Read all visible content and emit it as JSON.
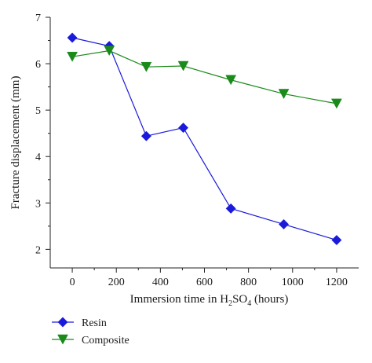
{
  "chart_data": {
    "type": "line",
    "x": [
      0,
      168,
      336,
      504,
      720,
      960,
      1200
    ],
    "series": [
      {
        "name": "Resin",
        "values": [
          6.56,
          6.38,
          4.44,
          4.62,
          2.88,
          2.54,
          2.2
        ],
        "color": "#1a1adb",
        "marker": "diamond"
      },
      {
        "name": "Composite",
        "values": [
          6.15,
          6.28,
          5.93,
          5.95,
          5.65,
          5.35,
          5.14
        ],
        "color": "#1a8a1a",
        "marker": "triangle-down"
      }
    ],
    "xlabel": {
      "prefix": "Immersion time in H",
      "sub1": "2",
      "mid": "SO",
      "sub2": "4",
      "suffix": " (hours)"
    },
    "ylabel": "Fracture displacement (mm)",
    "xlim": [
      -100,
      1300
    ],
    "ylim": [
      1.6,
      7
    ],
    "xticks": [
      0,
      200,
      400,
      600,
      800,
      1000,
      1200
    ],
    "yticks": [
      2,
      3,
      4,
      5,
      6,
      7
    ],
    "grid": false,
    "legend_position": "bottom-left"
  }
}
